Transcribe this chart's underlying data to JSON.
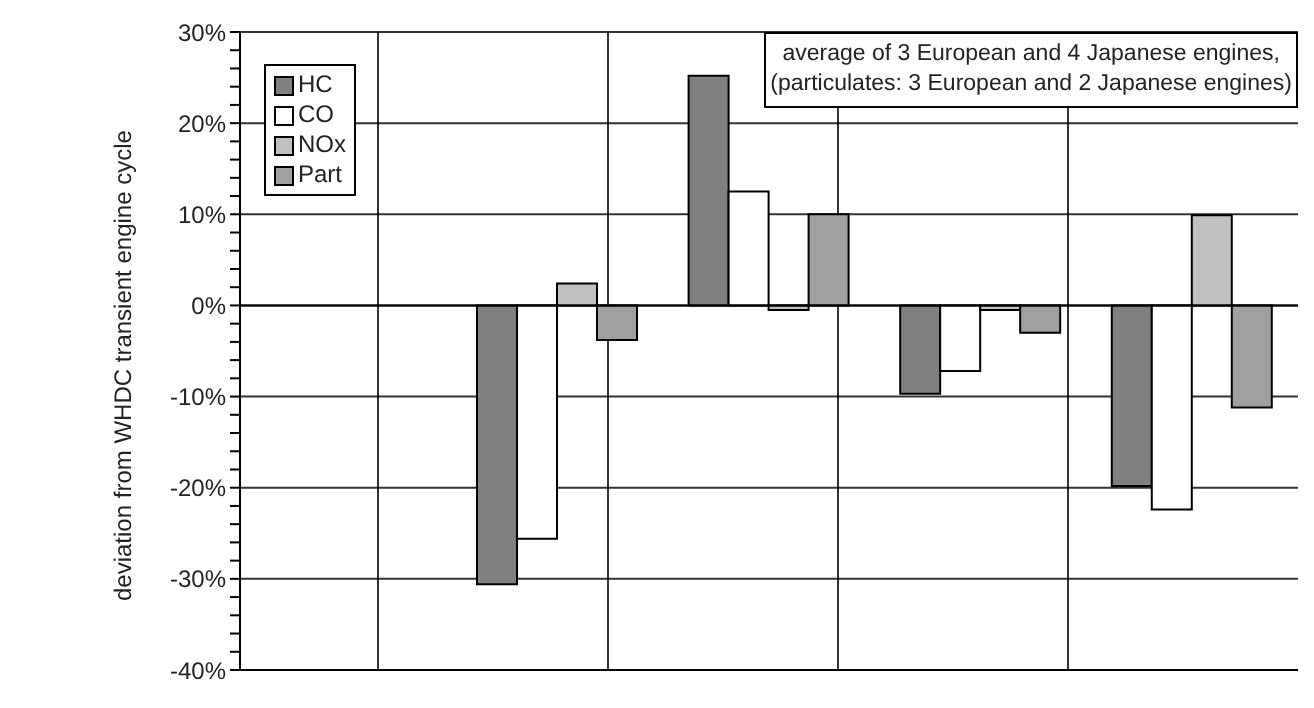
{
  "chart_data": {
    "type": "bar",
    "ylabel": "deviation from WHDC transient engine cycle",
    "categories": [
      null,
      null,
      null,
      null,
      null
    ],
    "series": [
      {
        "name": "HC",
        "color": "#808080",
        "values": [
          null,
          -30.6,
          25.2,
          -9.7,
          -19.8
        ]
      },
      {
        "name": "CO",
        "color": "#ffffff",
        "values": [
          null,
          -25.6,
          12.5,
          -7.2,
          -22.4
        ]
      },
      {
        "name": "NOx",
        "color": "#c0c0c0",
        "values": [
          null,
          2.4,
          -0.5,
          -0.5,
          9.9
        ]
      },
      {
        "name": "Part",
        "color": "#a0a0a0",
        "values": [
          null,
          -3.8,
          10,
          -3,
          -11.2
        ]
      }
    ],
    "ylim": [
      -40,
      30
    ],
    "yticks": [
      {
        "value": -40,
        "label": "-40%"
      },
      {
        "value": -38,
        "label": null
      },
      {
        "value": -36,
        "label": null
      },
      {
        "value": -34,
        "label": null
      },
      {
        "value": -32,
        "label": null
      },
      {
        "value": -30,
        "label": "-30%"
      },
      {
        "value": -28,
        "label": null
      },
      {
        "value": -26,
        "label": null
      },
      {
        "value": -24,
        "label": null
      },
      {
        "value": -22,
        "label": null
      },
      {
        "value": -20,
        "label": "-20%"
      },
      {
        "value": -18,
        "label": null
      },
      {
        "value": -16,
        "label": null
      },
      {
        "value": -14,
        "label": null
      },
      {
        "value": -12,
        "label": null
      },
      {
        "value": -10,
        "label": "-10%"
      },
      {
        "value": -8,
        "label": null
      },
      {
        "value": -6,
        "label": null
      },
      {
        "value": -4,
        "label": null
      },
      {
        "value": -2,
        "label": null
      },
      {
        "value": 0,
        "label": "0%"
      },
      {
        "value": 2,
        "label": null
      },
      {
        "value": 4,
        "label": null
      },
      {
        "value": 6,
        "label": null
      },
      {
        "value": 8,
        "label": null
      },
      {
        "value": 10,
        "label": "10%"
      },
      {
        "value": 12,
        "label": null
      },
      {
        "value": 14,
        "label": null
      },
      {
        "value": 16,
        "label": null
      },
      {
        "value": 18,
        "label": null
      },
      {
        "value": 20,
        "label": "20%"
      },
      {
        "value": 22,
        "label": null
      },
      {
        "value": 24,
        "label": null
      },
      {
        "value": 26,
        "label": null
      },
      {
        "value": 28,
        "label": null
      },
      {
        "value": 30,
        "label": "30%"
      }
    ],
    "grid": true,
    "legend": "top left",
    "annotations": [
      "average of 3 European and 4 Japanese engines,",
      "(particulates: 3 European and 2 Japanese engines)"
    ]
  }
}
